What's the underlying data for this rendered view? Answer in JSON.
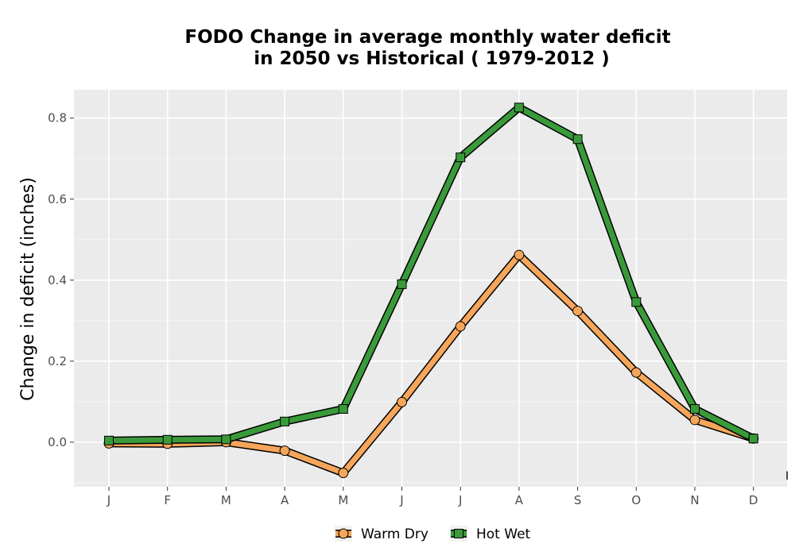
{
  "chart_data": {
    "type": "line",
    "title": "FODO  Change in average monthly water deficit\nin 2050 vs Historical ( 1979-2012 )",
    "xlabel": "",
    "ylabel": "Change in deficit (inches)",
    "categories": [
      "J",
      "F",
      "M",
      "A",
      "M",
      "J",
      "J",
      "A",
      "S",
      "O",
      "N",
      "D"
    ],
    "ylim": [
      -0.11,
      0.87
    ],
    "yticks": [
      0.0,
      0.2,
      0.4,
      0.6,
      0.8
    ],
    "ytick_labels": [
      "0.0",
      "0.2",
      "0.4",
      "0.6",
      "0.8"
    ],
    "grid": true,
    "legend_position": "bottom",
    "corner_mark": "I",
    "series": [
      {
        "name": "Warm Dry",
        "color": "#F5A65B",
        "marker": "circle",
        "values": [
          -0.003,
          -0.004,
          0.0,
          -0.021,
          -0.076,
          0.099,
          0.286,
          0.462,
          0.324,
          0.172,
          0.055,
          0.009
        ]
      },
      {
        "name": "Hot Wet",
        "color": "#3A9A3A",
        "marker": "square",
        "values": [
          0.004,
          0.006,
          0.007,
          0.051,
          0.082,
          0.39,
          0.703,
          0.826,
          0.748,
          0.346,
          0.082,
          0.009
        ]
      }
    ]
  }
}
